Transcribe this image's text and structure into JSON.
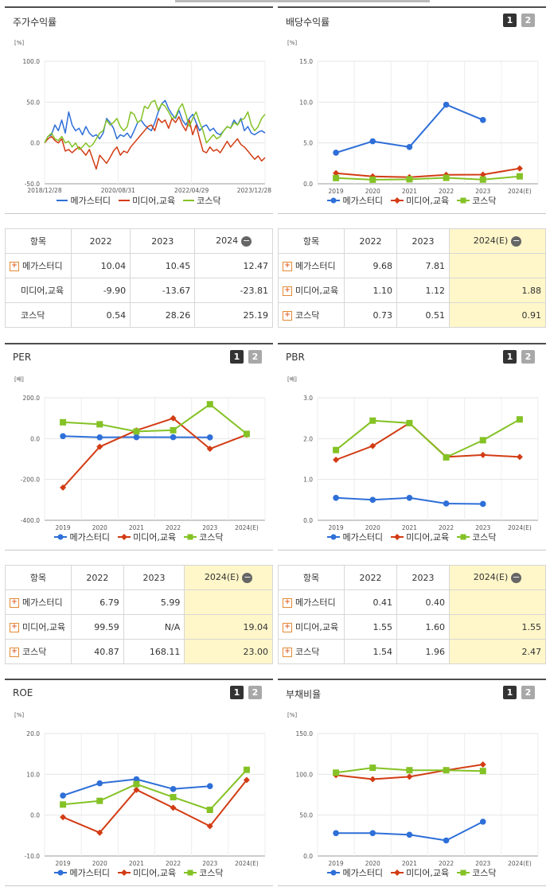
{
  "colors": {
    "series1": "#2e6fd8",
    "series2": "#d23c14",
    "series3": "#84c225"
  },
  "panels": {
    "stock": {
      "title": "주가수익률"
    },
    "dividend": {
      "title": "배당수익률",
      "btn1": "1",
      "btn2": "2"
    },
    "per": {
      "title": "PER",
      "btn1": "1",
      "btn2": "2"
    },
    "pbr": {
      "title": "PBR",
      "btn1": "1",
      "btn2": "2"
    },
    "roe": {
      "title": "ROE",
      "btn1": "1",
      "btn2": "2"
    },
    "debt": {
      "title": "부채비율",
      "btn1": "1",
      "btn2": "2"
    }
  },
  "legend": [
    "메가스터디",
    "미디어,교육",
    "코스닥"
  ],
  "tables": {
    "stock": {
      "headers": [
        "항목",
        "2022",
        "2023",
        "2024"
      ],
      "rows": [
        {
          "name": "메가스터디",
          "plus": true,
          "values": [
            "10.04",
            "10.45",
            "12.47"
          ]
        },
        {
          "name": "미디어,교육",
          "plus": false,
          "values": [
            "-9.90",
            "-13.67",
            "-23.81"
          ]
        },
        {
          "name": "코스닥",
          "plus": false,
          "values": [
            "0.54",
            "28.26",
            "25.19"
          ]
        }
      ]
    },
    "dividend": {
      "headers": [
        "항목",
        "2022",
        "2023",
        "2024(E)"
      ],
      "rows": [
        {
          "name": "메가스터디",
          "plus": true,
          "values": [
            "9.68",
            "7.81",
            ""
          ]
        },
        {
          "name": "미디어,교육",
          "plus": true,
          "values": [
            "1.10",
            "1.12",
            "1.88"
          ]
        },
        {
          "name": "코스닥",
          "plus": true,
          "values": [
            "0.73",
            "0.51",
            "0.91"
          ]
        }
      ]
    },
    "per": {
      "headers": [
        "항목",
        "2022",
        "2023",
        "2024(E)"
      ],
      "rows": [
        {
          "name": "메가스터디",
          "plus": true,
          "values": [
            "6.79",
            "5.99",
            ""
          ]
        },
        {
          "name": "미디어,교육",
          "plus": true,
          "values": [
            "99.59",
            "N/A",
            "19.04"
          ]
        },
        {
          "name": "코스닥",
          "plus": true,
          "values": [
            "40.87",
            "168.11",
            "23.00"
          ]
        }
      ]
    },
    "pbr": {
      "headers": [
        "항목",
        "2022",
        "2023",
        "2024(E)"
      ],
      "rows": [
        {
          "name": "메가스터디",
          "plus": true,
          "values": [
            "0.41",
            "0.40",
            ""
          ]
        },
        {
          "name": "미디어,교육",
          "plus": true,
          "values": [
            "1.55",
            "1.60",
            "1.55"
          ]
        },
        {
          "name": "코스닥",
          "plus": true,
          "values": [
            "1.54",
            "1.96",
            "2.47"
          ]
        }
      ]
    }
  },
  "chart_data": [
    {
      "id": "stock",
      "type": "line",
      "unit": "[%]",
      "ylim": [
        -50,
        100
      ],
      "yticks": [
        "100.0",
        "50.0",
        "0.0",
        "-50.0"
      ],
      "xticks": [
        "2018/12/28",
        "2020/08/31",
        "2022/04/29",
        "2023/12/28"
      ],
      "series": [
        {
          "name": "메가스터디",
          "values": [
            0,
            8,
            10,
            22,
            15,
            28,
            12,
            38,
            22,
            15,
            18,
            10,
            20,
            12,
            8,
            10,
            5,
            12,
            30,
            25,
            18,
            5,
            10,
            8,
            12,
            6,
            15,
            25,
            28,
            22,
            18,
            15,
            25,
            38,
            48,
            52,
            42,
            35,
            30,
            40,
            28,
            22,
            30,
            35,
            25,
            15,
            20,
            22,
            15,
            18,
            12,
            10,
            15,
            20,
            18,
            28,
            22,
            30,
            15,
            20,
            12,
            10,
            13,
            15,
            12
          ]
        },
        {
          "name": "미디어,교육",
          "values": [
            0,
            5,
            8,
            3,
            0,
            5,
            -10,
            -8,
            -12,
            -8,
            -5,
            -10,
            -15,
            -8,
            -20,
            -32,
            -15,
            -20,
            -25,
            -18,
            -10,
            -5,
            -15,
            -10,
            -12,
            -5,
            0,
            5,
            10,
            15,
            20,
            22,
            15,
            30,
            25,
            28,
            18,
            30,
            25,
            32,
            22,
            15,
            28,
            10,
            22,
            5,
            -10,
            -12,
            -5,
            -10,
            -8,
            -12,
            -5,
            2,
            -5,
            0,
            5,
            -2,
            -5,
            -10,
            -15,
            -20,
            -16,
            -22,
            -18
          ]
        },
        {
          "name": "코스닥",
          "values": [
            0,
            8,
            12,
            5,
            3,
            8,
            0,
            2,
            -5,
            0,
            -8,
            -5,
            0,
            -5,
            -2,
            5,
            12,
            15,
            28,
            22,
            25,
            30,
            20,
            15,
            20,
            38,
            35,
            25,
            28,
            45,
            42,
            50,
            52,
            40,
            48,
            45,
            38,
            30,
            32,
            42,
            48,
            35,
            20,
            30,
            38,
            25,
            15,
            0,
            5,
            10,
            5,
            8,
            15,
            20,
            18,
            25,
            22,
            28,
            30,
            38,
            22,
            15,
            20,
            30,
            35
          ]
        }
      ]
    },
    {
      "id": "dividend",
      "type": "line",
      "unit": "[%]",
      "ylim": [
        0,
        15
      ],
      "yticks": [
        "15.0",
        "10.0",
        "5.0",
        "0.0"
      ],
      "categories": [
        "2019",
        "2020",
        "2021",
        "2022",
        "2023",
        "2024(E)"
      ],
      "series": [
        {
          "name": "메가스터디",
          "values": [
            3.8,
            5.2,
            4.5,
            9.68,
            7.81,
            null
          ]
        },
        {
          "name": "미디어,교육",
          "values": [
            1.3,
            0.9,
            0.8,
            1.1,
            1.12,
            1.88
          ]
        },
        {
          "name": "코스닥",
          "values": [
            0.7,
            0.5,
            0.55,
            0.73,
            0.51,
            0.91
          ]
        }
      ]
    },
    {
      "id": "per",
      "type": "line",
      "unit": "[배]",
      "ylim": [
        -400,
        200
      ],
      "yticks": [
        "200.0",
        "0.0",
        "-200.0",
        "-400.0"
      ],
      "categories": [
        "2019",
        "2020",
        "2021",
        "2022",
        "2023",
        "2024(E)"
      ],
      "series": [
        {
          "name": "메가스터디",
          "values": [
            12,
            6,
            7,
            6.79,
            5.99,
            null
          ]
        },
        {
          "name": "미디어,교육",
          "values": [
            -240,
            -40,
            40,
            99.59,
            -50,
            19.04
          ]
        },
        {
          "name": "코스닥",
          "values": [
            80,
            70,
            35,
            40.87,
            168.11,
            23.0
          ]
        }
      ]
    },
    {
      "id": "pbr",
      "type": "line",
      "unit": "[배]",
      "ylim": [
        0,
        3
      ],
      "yticks": [
        "3.0",
        "2.0",
        "1.0",
        "0.0"
      ],
      "categories": [
        "2019",
        "2020",
        "2021",
        "2022",
        "2023",
        "2024(E)"
      ],
      "series": [
        {
          "name": "메가스터디",
          "values": [
            0.55,
            0.5,
            0.55,
            0.41,
            0.4,
            null
          ]
        },
        {
          "name": "미디어,교육",
          "values": [
            1.48,
            1.82,
            2.38,
            1.55,
            1.6,
            1.55
          ]
        },
        {
          "name": "코스닥",
          "values": [
            1.72,
            2.44,
            2.38,
            1.54,
            1.96,
            2.47
          ]
        }
      ]
    },
    {
      "id": "roe",
      "type": "line",
      "unit": "[%]",
      "ylim": [
        -10,
        20
      ],
      "yticks": [
        "20.0",
        "10.0",
        "0.0",
        "-10.0"
      ],
      "categories": [
        "2019",
        "2020",
        "2021",
        "2022",
        "2023",
        "2024(E)"
      ],
      "series": [
        {
          "name": "메가스터디",
          "values": [
            4.8,
            7.8,
            8.8,
            6.4,
            7.1,
            null
          ]
        },
        {
          "name": "미디어,교육",
          "values": [
            -0.5,
            -4.3,
            6.2,
            1.8,
            -2.7,
            8.6
          ]
        },
        {
          "name": "코스닥",
          "values": [
            2.6,
            3.5,
            7.6,
            4.4,
            1.3,
            11.1
          ]
        }
      ]
    },
    {
      "id": "debt",
      "type": "line",
      "unit": "[%]",
      "ylim": [
        0,
        150
      ],
      "yticks": [
        "150.0",
        "100.0",
        "50.0",
        "0.0"
      ],
      "categories": [
        "2019",
        "2020",
        "2021",
        "2022",
        "2023",
        "2024(E)"
      ],
      "series": [
        {
          "name": "메가스터디",
          "values": [
            28,
            28,
            26,
            19,
            42,
            null
          ]
        },
        {
          "name": "미디어,교육",
          "values": [
            99,
            94,
            97,
            105,
            112,
            null
          ]
        },
        {
          "name": "코스닥",
          "values": [
            102,
            108,
            105,
            105,
            104,
            null
          ]
        }
      ]
    }
  ]
}
